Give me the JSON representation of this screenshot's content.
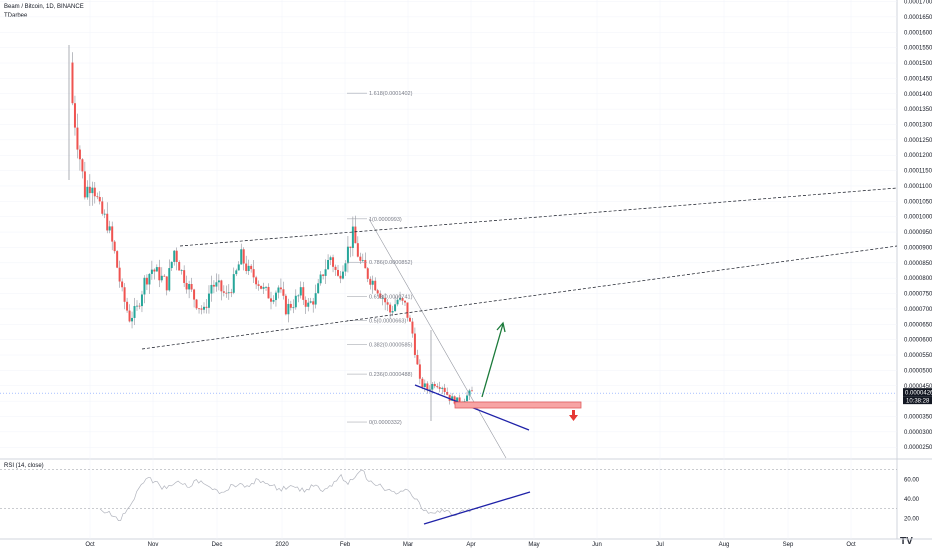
{
  "header": {
    "title": "Beam / Bitcoin, 1D, BINANCE",
    "author": "TDarbee"
  },
  "rsi_label": "RSI (14, close)",
  "price_badge": {
    "price": "0.0000426",
    "countdown": "10:38:28"
  },
  "colors": {
    "up": "#26a69a",
    "down": "#ef5350",
    "wick": "#787b86",
    "rsi_line": "#b2b5be",
    "blue_line": "#1f22a8",
    "green_arrow": "#1b7a3a",
    "red_arrow": "#e53935",
    "zone_fill": "#f7a4a4",
    "zone_stroke": "#e25c5c",
    "grid": "#f0f3fa"
  },
  "chart_data": [
    {
      "type": "candlestick",
      "title": "Beam / Bitcoin, 1D, BINANCE",
      "x_ticks": [
        "Oct",
        "Nov",
        "Dec",
        "2020",
        "Feb",
        "Mar",
        "Apr",
        "May",
        "Jun",
        "Jul",
        "Aug",
        "Sep",
        "Oct"
      ],
      "y_ticks": [
        "0.0001700",
        "0.0001650",
        "0.0001600",
        "0.0001550",
        "0.0001500",
        "0.0001450",
        "0.0001400",
        "0.0001350",
        "0.0001300",
        "0.0001250",
        "0.0001200",
        "0.0001150",
        "0.0001100",
        "0.0001050",
        "0.0001000",
        "0.0000950",
        "0.0000900",
        "0.0000850",
        "0.0000800",
        "0.0000750",
        "0.0000700",
        "0.0000650",
        "0.0000600",
        "0.0000550",
        "0.0000500",
        "0.0000450",
        "0.0000400",
        "0.0000350",
        "0.0000300",
        "0.0000250"
      ],
      "ylim": [
        2.15e-05,
        0.0001705
      ],
      "last_price": 4.26e-05,
      "close_series": [
        0.000143,
        0.000125,
        0.000108,
        0.000112,
        0.000102,
        9.8e-05,
        8.8e-05,
        7.5e-05,
        6.7e-05,
        7e-05,
        7.9e-05,
        8.3e-05,
        8.1e-05,
        7.8e-05,
        8.9e-05,
        8.2e-05,
        7.7e-05,
        7.2e-05,
        6.9e-05,
        7.8e-05,
        7.7e-05,
        7.4e-05,
        7.9e-05,
        8.7e-05,
        8.2e-05,
        8e-05,
        7.6e-05,
        7.4e-05,
        7.7e-05,
        7e-05,
        7.2e-05,
        7.5e-05,
        7.1e-05,
        7.4e-05,
        8.2e-05,
        8.7e-05,
        8e-05,
        8.7e-05,
        9.4e-05,
        8.5e-05,
        8.1e-05,
        7.8e-05,
        7.4e-05,
        6.9e-05,
        7.3e-05,
        7.1e-05,
        6.2e-05,
        4.6e-05,
        4.4e-05,
        4.6e-05,
        4.5e-05,
        4.1e-05,
        4e-05,
        4.1e-05,
        4.3e-05
      ],
      "fib_levels": [
        {
          "label": "1.618(0.0001402)",
          "value": 0.0001402
        },
        {
          "label": "1(0.0000993)",
          "value": 9.93e-05
        },
        {
          "label": "0.786(0.0000852)",
          "value": 8.52e-05
        },
        {
          "label": "0.618(0.0000741)",
          "value": 7.41e-05
        },
        {
          "label": "0.5(0.0000663)",
          "value": 6.63e-05
        },
        {
          "label": "0.382(0.0000585)",
          "value": 5.85e-05
        },
        {
          "label": "0.236(0.0000488)",
          "value": 4.88e-05
        },
        {
          "label": "0(0.0000332)",
          "value": 3.32e-05
        }
      ]
    },
    {
      "type": "line",
      "title": "RSI (14, close)",
      "y_ticks": [
        "60.00",
        "40.00",
        "20.00"
      ],
      "ylim": [
        0,
        80
      ],
      "bands": [
        70,
        30
      ],
      "values": [
        30,
        26,
        22,
        18,
        30,
        40,
        55,
        62,
        58,
        50,
        54,
        57,
        55,
        52,
        60,
        56,
        52,
        49,
        47,
        55,
        54,
        52,
        56,
        60,
        56,
        54,
        51,
        50,
        53,
        48,
        50,
        53,
        49,
        51,
        58,
        65,
        55,
        62,
        70,
        58,
        54,
        52,
        50,
        45,
        48,
        47,
        40,
        28,
        26,
        28,
        27,
        24,
        25,
        27,
        30
      ]
    }
  ]
}
